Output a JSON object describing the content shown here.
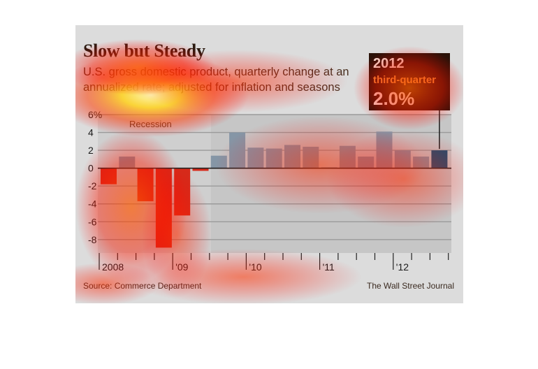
{
  "header": {
    "title": "Slow but Steady",
    "subtitle": "U.S. gross domestic product, quarterly change at an annualized rate; adjusted for inflation and seasons"
  },
  "callout": {
    "year": "2012",
    "label": "third-quarter",
    "value": "2.0%"
  },
  "footer": {
    "source": "Source: Commerce Department",
    "credit": "The Wall Street Journal"
  },
  "colors": {
    "recession_bar": "#d62a1a",
    "normal_bar": "#8596a6",
    "latest_bar": "#1c4f72",
    "recession_shade": "#cfcfcf",
    "plot_shade": "#c6c6c6"
  },
  "chart_data": {
    "type": "bar",
    "ylim": [
      -9.5,
      6
    ],
    "y_ticks": [
      6,
      4,
      2,
      0,
      -2,
      -4,
      -6,
      -8
    ],
    "y_tick_labels": [
      "6%",
      "4",
      "2",
      "0",
      "-2",
      "-4",
      "-6",
      "-8"
    ],
    "annotation": "Recession",
    "x_labels": [
      {
        "text": "2008",
        "quarter_index": 0
      },
      {
        "text": "'09",
        "quarter_index": 4
      },
      {
        "text": "'10",
        "quarter_index": 8
      },
      {
        "text": "'11",
        "quarter_index": 12
      },
      {
        "text": "'12",
        "quarter_index": 16
      }
    ],
    "quarters": [
      "2008 Q1",
      "2008 Q2",
      "2008 Q3",
      "2008 Q4",
      "2009 Q1",
      "2009 Q2",
      "2009 Q3",
      "2009 Q4",
      "2010 Q1",
      "2010 Q2",
      "2010 Q3",
      "2010 Q4",
      "2011 Q1",
      "2011 Q2",
      "2011 Q3",
      "2011 Q4",
      "2012 Q1",
      "2012 Q2",
      "2012 Q3"
    ],
    "values": [
      -1.8,
      1.3,
      -3.7,
      -8.9,
      -5.3,
      -0.3,
      1.4,
      4.0,
      2.3,
      2.2,
      2.6,
      2.4,
      0.1,
      2.5,
      1.3,
      4.1,
      2.0,
      1.3,
      2.0
    ],
    "recession_quarters": [
      0,
      5
    ]
  }
}
